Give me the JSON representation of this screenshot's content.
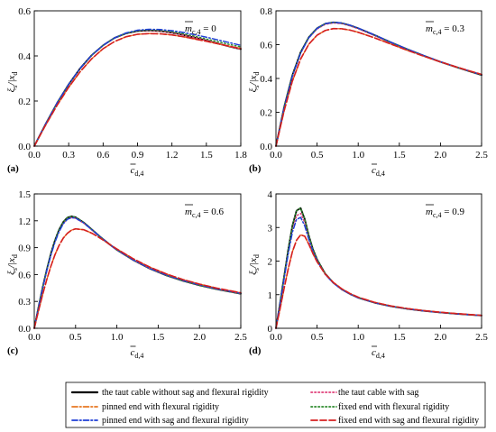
{
  "figure": {
    "y_axis_label": "ξ_s/|x_d",
    "x_axis_label": "c_d,4",
    "legend": [
      {
        "label": "the taut cable without sag and flexural rigidity",
        "color": "#000000",
        "dash": "solid"
      },
      {
        "label": "the taut cable with sag",
        "color": "#e0407a",
        "dash": "dot"
      },
      {
        "label": "pinned end with flexural rigidity",
        "color": "#e87722",
        "dash": "dashdot"
      },
      {
        "label": "fixed end with flexural rigidity",
        "color": "#2e8b2e",
        "dash": "dot"
      },
      {
        "label": "pinned end with sag and flexural rigidity",
        "color": "#1f3fd6",
        "dash": "dashdot"
      },
      {
        "label": "fixed end with sag and flexural rigidity",
        "color": "#d62020",
        "dash": "dash"
      }
    ]
  },
  "chart_data": [
    {
      "type": "line",
      "panel": "(a)",
      "annotation": "m_c,4 = 0",
      "xlim": [
        0,
        1.8
      ],
      "ylim": [
        0,
        0.6
      ],
      "xticks": [
        "0.0",
        "0.3",
        "0.6",
        "0.9",
        "1.2",
        "1.5",
        "1.8"
      ],
      "yticks": [
        "0.0",
        "0.2",
        "0.4",
        "0.6"
      ],
      "x": [
        0,
        0.1,
        0.2,
        0.3,
        0.4,
        0.5,
        0.6,
        0.7,
        0.8,
        0.9,
        1.0,
        1.1,
        1.2,
        1.3,
        1.4,
        1.5,
        1.6,
        1.7,
        1.8
      ],
      "series": [
        {
          "name": "the taut cable without sag and flexural rigidity",
          "values": [
            0,
            0.099,
            0.192,
            0.274,
            0.345,
            0.403,
            0.447,
            0.48,
            0.5,
            0.51,
            0.513,
            0.51,
            0.503,
            0.493,
            0.481,
            0.468,
            0.455,
            0.442,
            0.43
          ]
        },
        {
          "name": "the taut cable with sag",
          "values": [
            0,
            0.099,
            0.192,
            0.274,
            0.345,
            0.403,
            0.447,
            0.48,
            0.5,
            0.51,
            0.513,
            0.51,
            0.503,
            0.493,
            0.481,
            0.468,
            0.455,
            0.442,
            0.43
          ]
        },
        {
          "name": "pinned end with flexural rigidity",
          "values": [
            0,
            0.094,
            0.182,
            0.261,
            0.33,
            0.387,
            0.432,
            0.464,
            0.485,
            0.496,
            0.499,
            0.498,
            0.493,
            0.485,
            0.475,
            0.465,
            0.454,
            0.443,
            0.433
          ]
        },
        {
          "name": "fixed end with flexural rigidity",
          "values": [
            0,
            0.099,
            0.192,
            0.274,
            0.345,
            0.403,
            0.447,
            0.48,
            0.5,
            0.511,
            0.515,
            0.513,
            0.507,
            0.498,
            0.487,
            0.475,
            0.463,
            0.451,
            0.44
          ]
        },
        {
          "name": "pinned end with sag and flexural rigidity",
          "values": [
            0,
            0.099,
            0.192,
            0.274,
            0.345,
            0.403,
            0.447,
            0.48,
            0.502,
            0.514,
            0.518,
            0.517,
            0.512,
            0.504,
            0.494,
            0.483,
            0.471,
            0.459,
            0.447
          ]
        },
        {
          "name": "fixed end with sag and flexural rigidity",
          "values": [
            0,
            0.094,
            0.182,
            0.261,
            0.33,
            0.387,
            0.432,
            0.464,
            0.485,
            0.496,
            0.499,
            0.498,
            0.493,
            0.485,
            0.475,
            0.465,
            0.454,
            0.443,
            0.433
          ]
        }
      ]
    },
    {
      "type": "line",
      "panel": "(b)",
      "annotation": "m_c,4 = 0.3",
      "xlim": [
        0,
        2.5
      ],
      "ylim": [
        0,
        0.8
      ],
      "xticks": [
        "0.0",
        "0.5",
        "1.0",
        "1.5",
        "2.0",
        "2.5"
      ],
      "yticks": [
        "0.0",
        "0.2",
        "0.4",
        "0.6",
        "0.8"
      ],
      "x": [
        0,
        0.1,
        0.2,
        0.3,
        0.4,
        0.5,
        0.6,
        0.7,
        0.8,
        0.9,
        1.0,
        1.2,
        1.4,
        1.6,
        1.8,
        2.0,
        2.2,
        2.5
      ],
      "series": [
        {
          "name": "the taut cable without sag and flexural rigidity",
          "values": [
            0,
            0.232,
            0.42,
            0.555,
            0.644,
            0.697,
            0.724,
            0.732,
            0.727,
            0.714,
            0.697,
            0.656,
            0.613,
            0.572,
            0.534,
            0.498,
            0.466,
            0.42
          ]
        },
        {
          "name": "the taut cable with sag",
          "values": [
            0,
            0.23,
            0.416,
            0.551,
            0.64,
            0.693,
            0.72,
            0.728,
            0.724,
            0.711,
            0.694,
            0.653,
            0.611,
            0.57,
            0.533,
            0.498,
            0.466,
            0.421
          ]
        },
        {
          "name": "pinned end with flexural rigidity",
          "values": [
            0,
            0.21,
            0.385,
            0.515,
            0.603,
            0.656,
            0.684,
            0.695,
            0.694,
            0.686,
            0.673,
            0.64,
            0.603,
            0.566,
            0.531,
            0.498,
            0.467,
            0.424
          ]
        },
        {
          "name": "fixed end with flexural rigidity",
          "values": [
            0,
            0.232,
            0.42,
            0.555,
            0.644,
            0.697,
            0.724,
            0.732,
            0.727,
            0.714,
            0.697,
            0.656,
            0.613,
            0.572,
            0.534,
            0.498,
            0.466,
            0.42
          ]
        },
        {
          "name": "pinned end with sag and flexural rigidity",
          "values": [
            0,
            0.228,
            0.414,
            0.55,
            0.641,
            0.696,
            0.724,
            0.732,
            0.728,
            0.715,
            0.698,
            0.657,
            0.614,
            0.573,
            0.535,
            0.499,
            0.467,
            0.422
          ]
        },
        {
          "name": "fixed end with sag and flexural rigidity",
          "values": [
            0,
            0.21,
            0.385,
            0.515,
            0.603,
            0.656,
            0.684,
            0.695,
            0.694,
            0.686,
            0.673,
            0.64,
            0.603,
            0.566,
            0.531,
            0.498,
            0.467,
            0.424
          ]
        }
      ]
    },
    {
      "type": "line",
      "panel": "(c)",
      "annotation": "m_c,4 = 0.6",
      "xlim": [
        0,
        2.5
      ],
      "ylim": [
        0,
        1.5
      ],
      "xticks": [
        "0.0",
        "0.5",
        "1.0",
        "1.5",
        "2.0",
        "2.5"
      ],
      "yticks": [
        "0.0",
        "0.3",
        "0.6",
        "0.9",
        "1.2",
        "1.5"
      ],
      "x": [
        0,
        0.05,
        0.1,
        0.15,
        0.2,
        0.25,
        0.3,
        0.35,
        0.4,
        0.45,
        0.5,
        0.6,
        0.7,
        0.8,
        0.9,
        1.0,
        1.2,
        1.4,
        1.6,
        1.8,
        2.0,
        2.2,
        2.5
      ],
      "series": [
        {
          "name": "the taut cable without sag and flexural rigidity",
          "values": [
            0,
            0.23,
            0.45,
            0.65,
            0.83,
            0.98,
            1.1,
            1.185,
            1.235,
            1.25,
            1.24,
            1.18,
            1.1,
            1.02,
            0.945,
            0.875,
            0.76,
            0.665,
            0.59,
            0.53,
            0.48,
            0.438,
            0.385
          ]
        },
        {
          "name": "the taut cable with sag",
          "values": [
            0,
            0.228,
            0.446,
            0.643,
            0.82,
            0.968,
            1.085,
            1.17,
            1.22,
            1.236,
            1.228,
            1.172,
            1.095,
            1.016,
            0.942,
            0.873,
            0.76,
            0.666,
            0.592,
            0.532,
            0.482,
            0.44,
            0.388
          ]
        },
        {
          "name": "pinned end with flexural rigidity",
          "values": [
            0,
            0.19,
            0.372,
            0.54,
            0.69,
            0.82,
            0.925,
            1.005,
            1.06,
            1.095,
            1.11,
            1.1,
            1.06,
            1.005,
            0.945,
            0.885,
            0.775,
            0.682,
            0.606,
            0.544,
            0.493,
            0.45,
            0.396
          ]
        },
        {
          "name": "fixed end with flexural rigidity",
          "values": [
            0,
            0.23,
            0.45,
            0.65,
            0.83,
            0.98,
            1.1,
            1.185,
            1.235,
            1.25,
            1.24,
            1.18,
            1.1,
            1.02,
            0.945,
            0.875,
            0.76,
            0.665,
            0.59,
            0.53,
            0.48,
            0.438,
            0.385
          ]
        },
        {
          "name": "pinned end with sag and flexural rigidity",
          "values": [
            0,
            0.225,
            0.44,
            0.636,
            0.812,
            0.96,
            1.078,
            1.164,
            1.216,
            1.235,
            1.23,
            1.175,
            1.098,
            1.019,
            0.945,
            0.876,
            0.762,
            0.668,
            0.594,
            0.534,
            0.484,
            0.442,
            0.39
          ]
        },
        {
          "name": "fixed end with sag and flexural rigidity",
          "values": [
            0,
            0.19,
            0.372,
            0.54,
            0.69,
            0.82,
            0.925,
            1.005,
            1.06,
            1.095,
            1.11,
            1.1,
            1.06,
            1.005,
            0.945,
            0.885,
            0.775,
            0.682,
            0.606,
            0.544,
            0.493,
            0.45,
            0.396
          ]
        }
      ]
    },
    {
      "type": "line",
      "panel": "(d)",
      "annotation": "m_c,4 = 0.9",
      "xlim": [
        0,
        2.5
      ],
      "ylim": [
        0,
        4
      ],
      "xticks": [
        "0.0",
        "0.5",
        "1.0",
        "1.5",
        "2.0",
        "2.5"
      ],
      "yticks": [
        "0",
        "1",
        "2",
        "3",
        "4"
      ],
      "x": [
        0,
        0.05,
        0.1,
        0.15,
        0.2,
        0.25,
        0.3,
        0.35,
        0.4,
        0.45,
        0.5,
        0.6,
        0.7,
        0.8,
        0.9,
        1.0,
        1.2,
        1.4,
        1.6,
        1.8,
        2.0,
        2.2,
        2.5
      ],
      "series": [
        {
          "name": "the taut cable without sag and flexural rigidity",
          "values": [
            0,
            0.75,
            1.55,
            2.35,
            3.05,
            3.5,
            3.58,
            3.25,
            2.75,
            2.35,
            2.05,
            1.62,
            1.35,
            1.16,
            1.02,
            0.91,
            0.76,
            0.655,
            0.578,
            0.518,
            0.47,
            0.43,
            0.38
          ]
        },
        {
          "name": "the taut cable with sag",
          "values": [
            0,
            0.74,
            1.52,
            2.3,
            2.95,
            3.35,
            3.42,
            3.15,
            2.7,
            2.32,
            2.03,
            1.61,
            1.345,
            1.158,
            1.018,
            0.91,
            0.76,
            0.656,
            0.579,
            0.519,
            0.471,
            0.431,
            0.381
          ]
        },
        {
          "name": "pinned end with flexural rigidity",
          "values": [
            0,
            0.58,
            1.2,
            1.78,
            2.28,
            2.62,
            2.78,
            2.74,
            2.5,
            2.22,
            1.98,
            1.61,
            1.36,
            1.175,
            1.035,
            0.925,
            0.772,
            0.665,
            0.587,
            0.526,
            0.477,
            0.436,
            0.385
          ]
        },
        {
          "name": "fixed end with flexural rigidity",
          "values": [
            0,
            0.75,
            1.55,
            2.35,
            3.05,
            3.5,
            3.58,
            3.25,
            2.75,
            2.35,
            2.05,
            1.62,
            1.35,
            1.16,
            1.02,
            0.91,
            0.76,
            0.655,
            0.578,
            0.518,
            0.47,
            0.43,
            0.38
          ]
        },
        {
          "name": "pinned end with sag and flexural rigidity",
          "values": [
            0,
            0.72,
            1.48,
            2.23,
            2.86,
            3.24,
            3.3,
            3.05,
            2.64,
            2.29,
            2.01,
            1.6,
            1.342,
            1.156,
            1.017,
            0.909,
            0.76,
            0.656,
            0.579,
            0.519,
            0.471,
            0.431,
            0.381
          ]
        },
        {
          "name": "fixed end with sag and flexural rigidity",
          "values": [
            0,
            0.58,
            1.2,
            1.78,
            2.28,
            2.62,
            2.78,
            2.74,
            2.5,
            2.22,
            1.98,
            1.61,
            1.36,
            1.175,
            1.035,
            0.925,
            0.772,
            0.665,
            0.587,
            0.526,
            0.477,
            0.436,
            0.385
          ]
        }
      ]
    }
  ]
}
